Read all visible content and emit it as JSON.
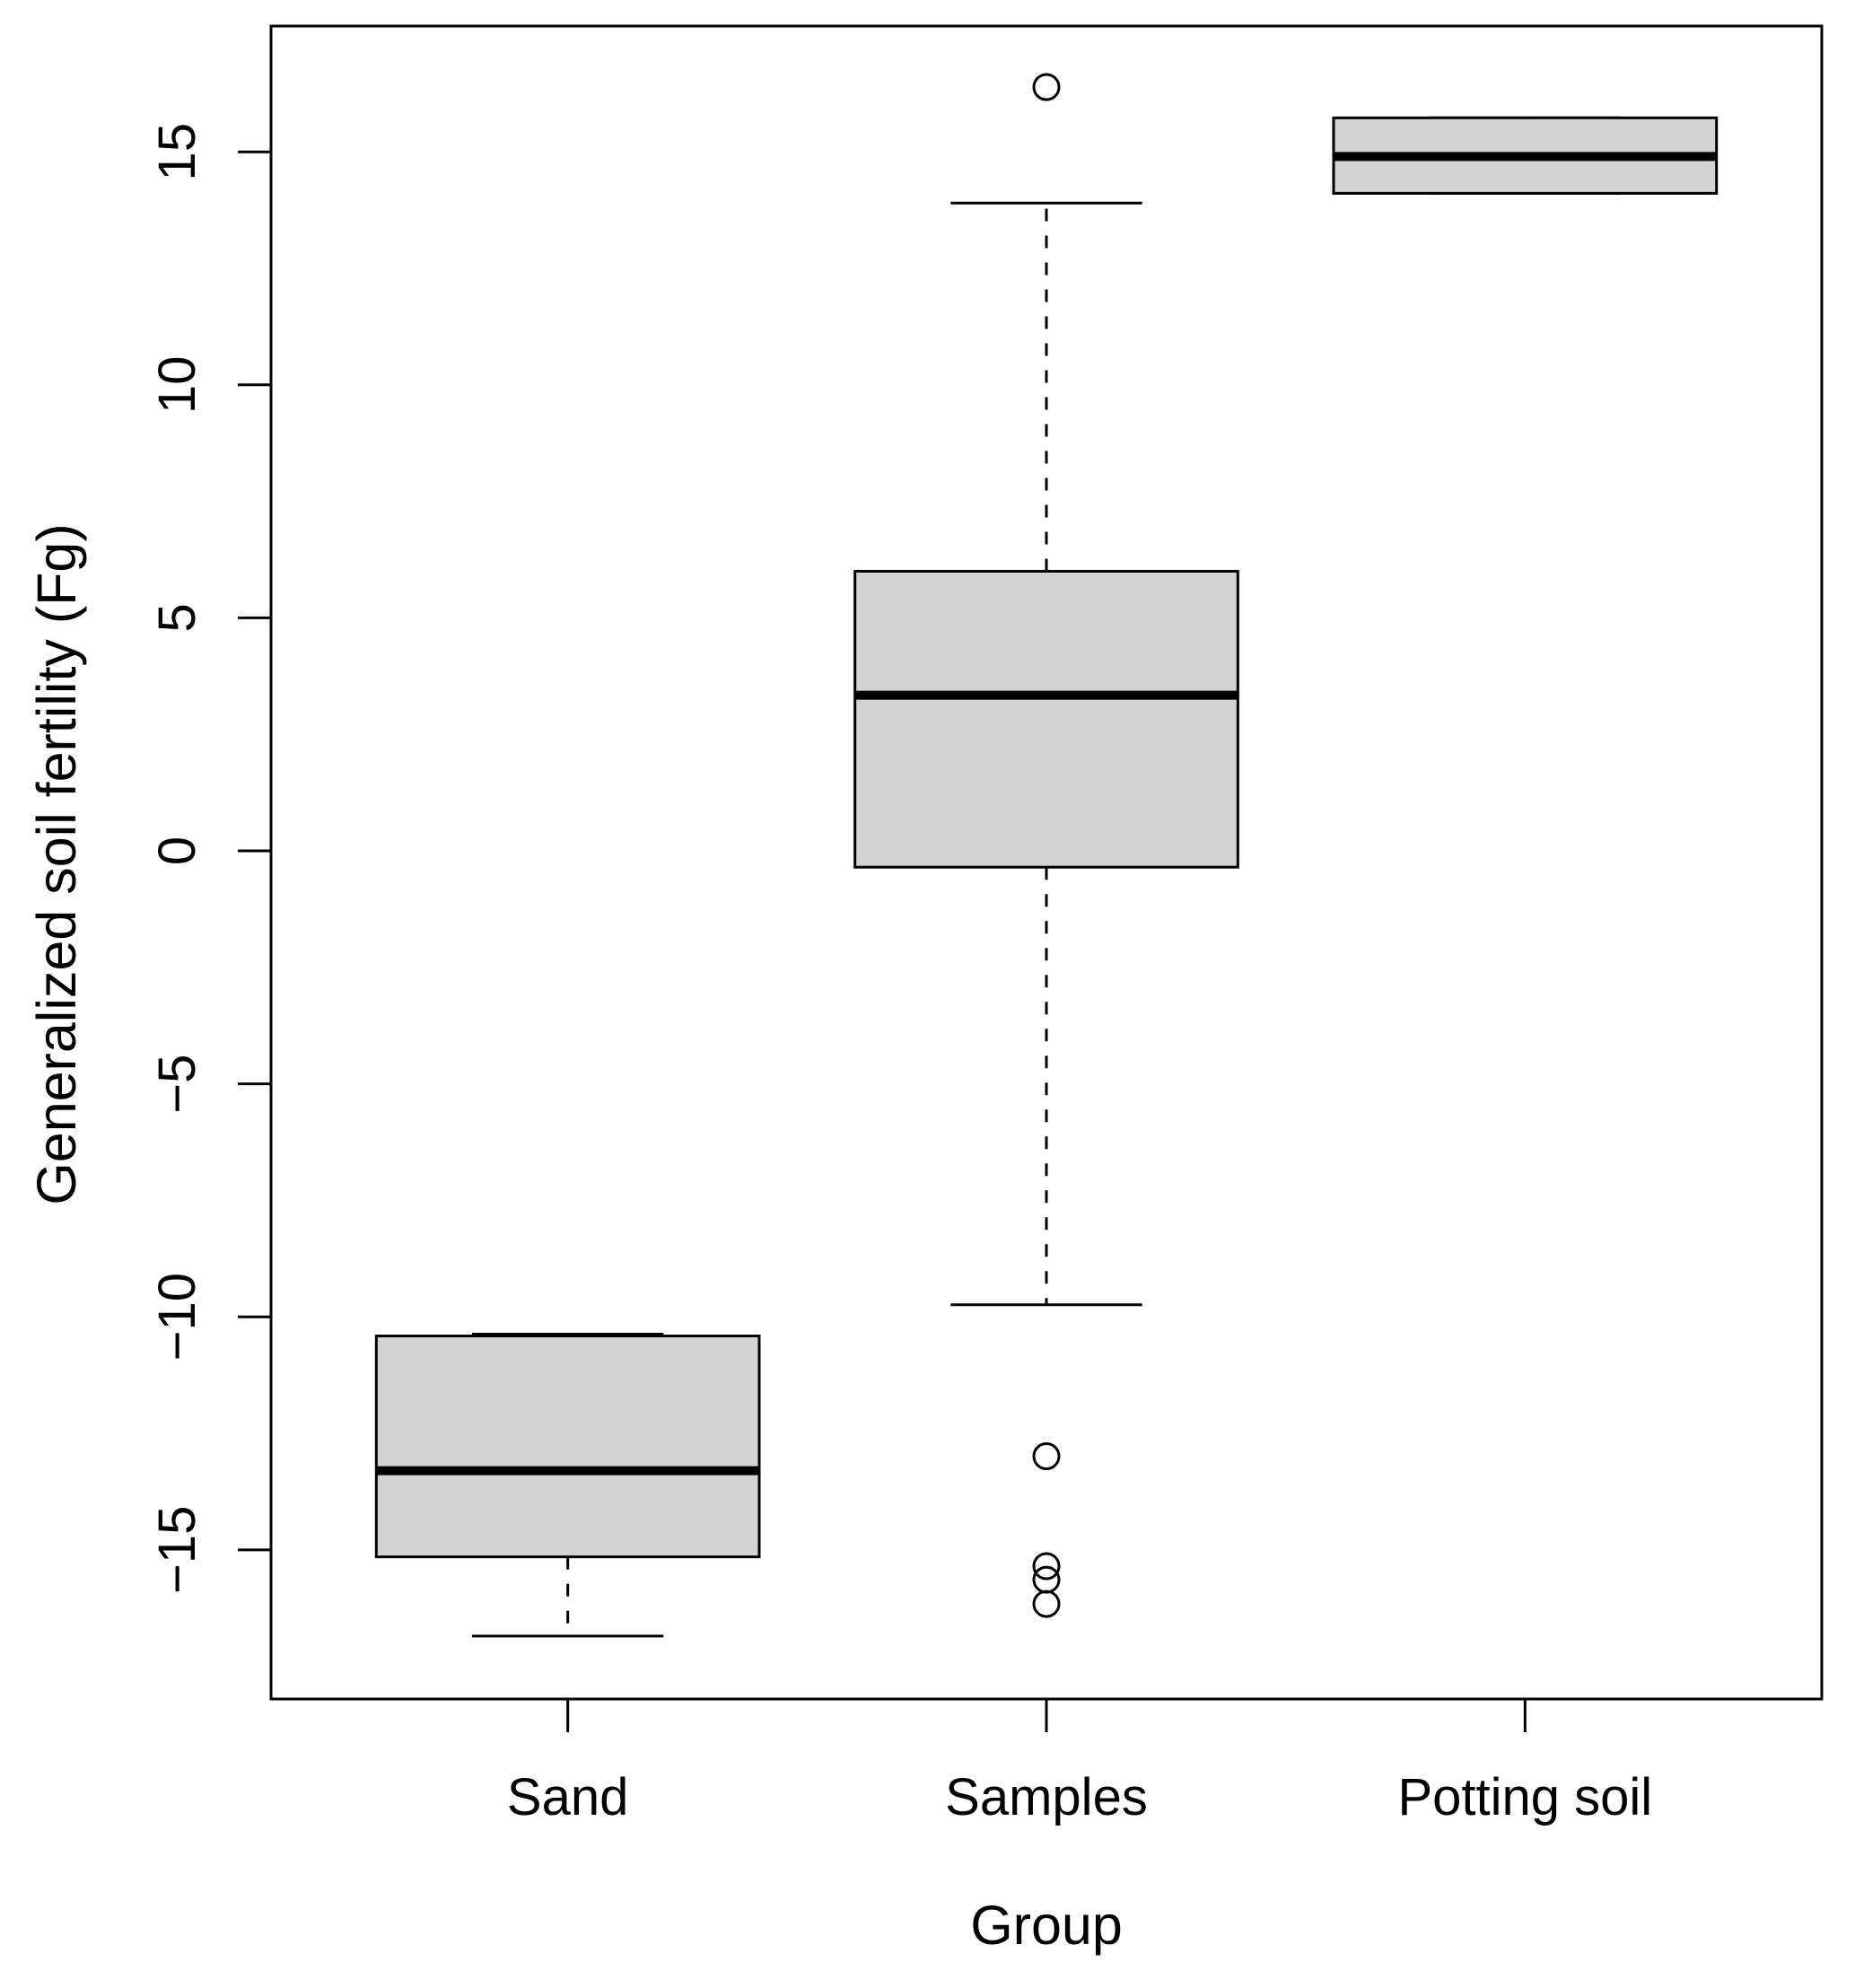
{
  "chart_data": {
    "type": "boxplot",
    "title": "",
    "xlabel": "Group",
    "ylabel": "Generalized soil fertility (Fg)",
    "categories": [
      "Sand",
      "Samples",
      "Potting soil"
    ],
    "ylim": [
      -18.2,
      17.7
    ],
    "xlim": [
      0.38,
      3.62
    ],
    "yticks": [
      -15,
      -10,
      -5,
      0,
      5,
      10,
      15
    ],
    "ytick_labels": [
      "−15",
      "−10",
      "−5",
      "0",
      "5",
      "10",
      "15"
    ],
    "grid": false,
    "legend": "none",
    "series": [
      {
        "name": "Sand",
        "whisker_low": -16.85,
        "q1": -15.15,
        "median": -13.3,
        "q3": -10.41,
        "whisker_high": -10.37,
        "outliers": []
      },
      {
        "name": "Samples",
        "whisker_low": -9.74,
        "q1": -0.35,
        "median": 3.34,
        "q3": 6.0,
        "whisker_high": 13.9,
        "outliers": [
          16.39,
          -12.99,
          -15.35,
          -15.64,
          -16.16
        ]
      },
      {
        "name": "Potting soil",
        "whisker_low": 14.11,
        "q1": 14.11,
        "median": 14.9,
        "q3": 15.73,
        "whisker_high": 15.73,
        "outliers": []
      }
    ],
    "colors": {
      "box_fill": "#d3d3d3",
      "line": "#000000",
      "background": "#ffffff"
    }
  }
}
